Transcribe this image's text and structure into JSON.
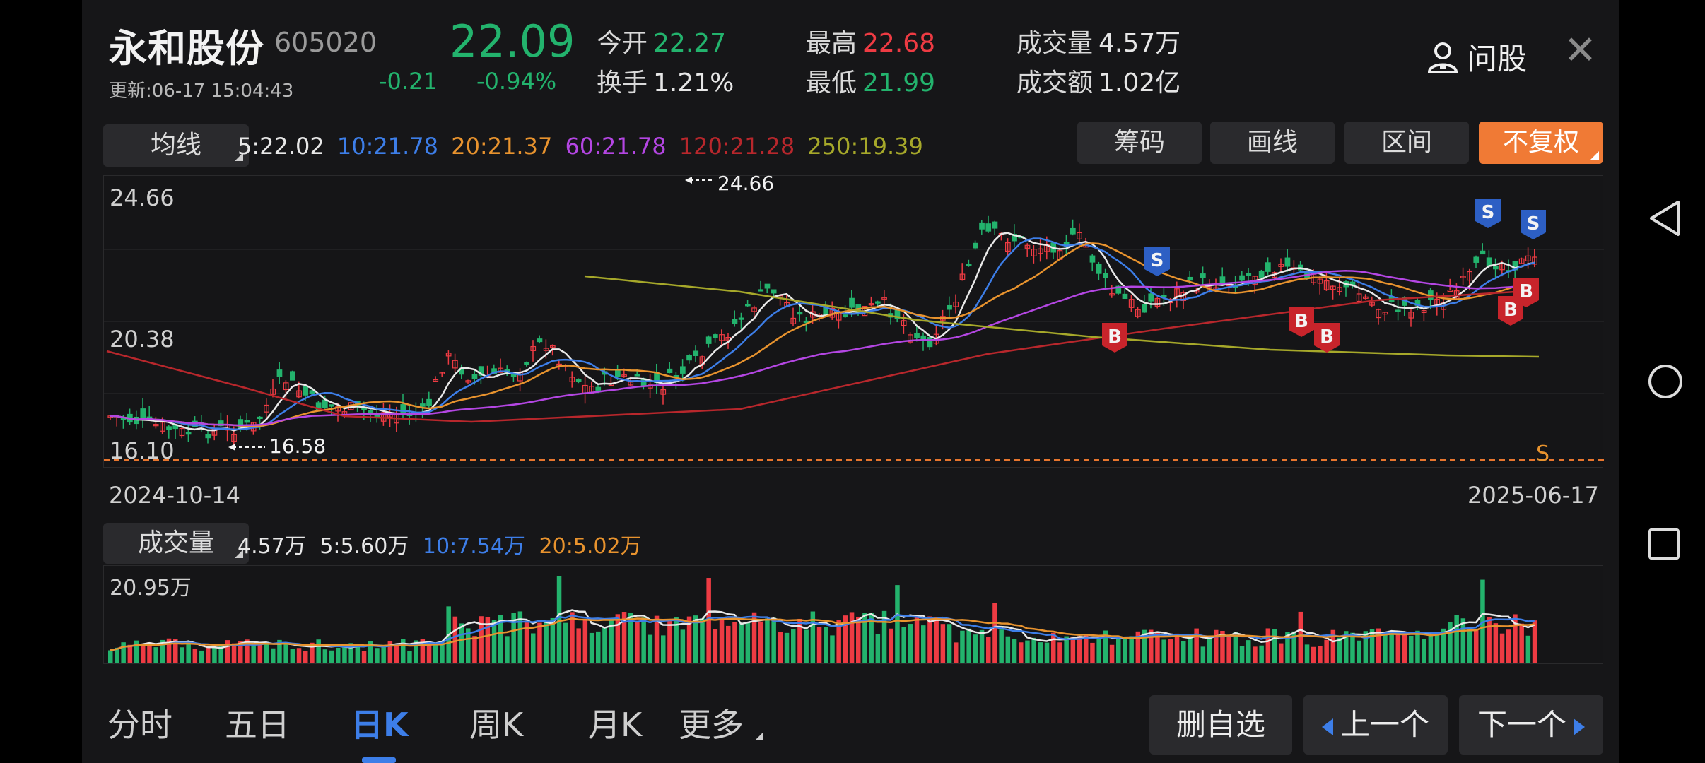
{
  "stock": {
    "name": "永和股份",
    "code": "605020",
    "update_time": "更新:06-17 15:04:43",
    "price": "22.09",
    "change": "-0.21",
    "change_pct": "-0.94%"
  },
  "quotes": {
    "open_label": "今开",
    "open": "22.27",
    "turnover_label": "换手",
    "turnover": "1.21%",
    "high_label": "最高",
    "high": "22.68",
    "low_label": "最低",
    "low": "21.99",
    "volume_label": "成交量",
    "volume": "4.57万",
    "amount_label": "成交额",
    "amount": "1.02亿"
  },
  "header": {
    "ask_label": "问股",
    "close_glyph": "✕"
  },
  "ma_bar": {
    "selector": "均线",
    "ma5": "5:22.02",
    "ma10": "10:21.78",
    "ma20": "20:21.37",
    "ma60": "60:21.78",
    "ma120": "120:21.28",
    "ma250": "250:19.39"
  },
  "tools": {
    "chips": "筹码",
    "draw": "画线",
    "range": "区间",
    "adjust": "不复权"
  },
  "colors": {
    "up": "#ee3b43",
    "down": "#23b36d",
    "ma5": "#e8e8e8",
    "ma10": "#3d7ee8",
    "ma20": "#e8932e",
    "ma60": "#b446e3",
    "ma120": "#b8272c",
    "ma250": "#a6a82a",
    "buy_badge": "#c8242b",
    "sell_badge": "#2d5fc4"
  },
  "kline": {
    "y_top": "24.66",
    "y_mid": "20.38",
    "y_bottom": "16.10",
    "date_start": "2024-10-14",
    "date_end": "2025-06-17",
    "max_label": "24.66",
    "min_label": "16.58",
    "s_marker": "S",
    "buy_glyph": "B",
    "sell_glyph": "S"
  },
  "volume_bar": {
    "selector": "成交量",
    "current": "4.57万",
    "ma5": "5:5.60万",
    "ma10": "10:7.54万",
    "ma20": "20:5.02万",
    "y_top": "20.95万"
  },
  "tabs": [
    "分时",
    "五日",
    "日K",
    "周K",
    "月K",
    "更多"
  ],
  "bottom_buttons": {
    "remove": "删自选",
    "prev": "上一个",
    "next": "下一个"
  },
  "nav_icons": [
    "back-triangle-icon",
    "home-circle-icon",
    "recents-square-icon"
  ]
}
